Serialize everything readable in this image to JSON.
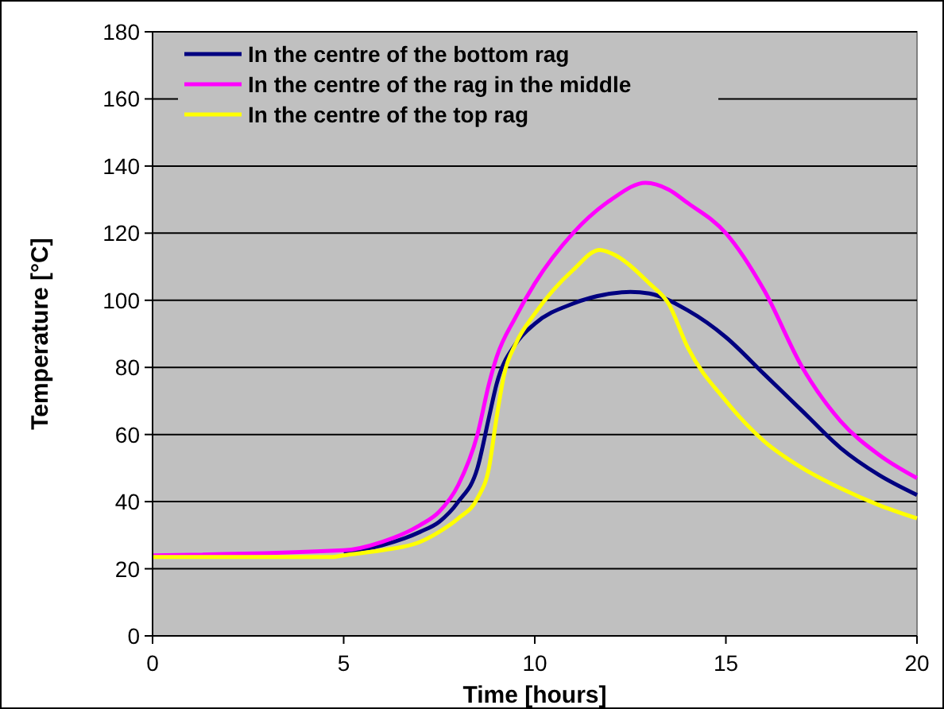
{
  "chart_data": {
    "type": "line",
    "xlabel": "Time [hours]",
    "ylabel": "Temperature [°C]",
    "xlim": [
      0,
      20
    ],
    "xticks": [
      0,
      5,
      10,
      15,
      20
    ],
    "ylim": [
      0,
      180
    ],
    "yticks": [
      0,
      20,
      40,
      60,
      80,
      100,
      120,
      140,
      160,
      180
    ],
    "grid": "y",
    "legend": "top left",
    "marker": "none",
    "line_style": "solid",
    "series": [
      {
        "name": "In the centre of the bottom rag",
        "color": "#000080",
        "x": [
          5,
          6,
          7,
          7.5,
          8,
          8.5,
          8.8,
          9,
          9.5,
          10,
          11,
          12,
          12.5,
          13,
          14,
          15,
          16,
          17,
          18,
          19,
          20
        ],
        "values": [
          25,
          27,
          31,
          34,
          40,
          50,
          65,
          75,
          87,
          93,
          99,
          102,
          102.5,
          102,
          97,
          89,
          78,
          67,
          56,
          48,
          42
        ]
      },
      {
        "name": "In the centre of the rag in the middle",
        "color": "#ff00ff",
        "x": [
          0,
          5,
          6,
          7,
          7.5,
          8,
          8.5,
          8.8,
          9,
          9.5,
          10,
          11,
          12,
          12.9,
          13.5,
          14,
          15,
          16,
          17,
          18,
          19,
          20
        ],
        "values": [
          24,
          25.5,
          28,
          33,
          37,
          45,
          60,
          75,
          83,
          95,
          105,
          120,
          130,
          135,
          133,
          129,
          120,
          103,
          80,
          64,
          54,
          47
        ]
      },
      {
        "name": "In the centre of the top rag",
        "color": "#ffff00",
        "x": [
          0,
          4.7,
          5,
          6,
          7,
          7.5,
          8,
          8.5,
          8.8,
          9,
          9.2,
          9.5,
          10,
          11,
          11.7,
          12,
          13,
          13.5,
          14,
          15,
          16,
          17,
          18,
          19,
          20
        ],
        "values": [
          23.5,
          23.5,
          24,
          25.5,
          28,
          31,
          35,
          41,
          50,
          65,
          78,
          87,
          96,
          109,
          115,
          114,
          105,
          99,
          86,
          70,
          58,
          50,
          44,
          39,
          35
        ]
      }
    ]
  }
}
